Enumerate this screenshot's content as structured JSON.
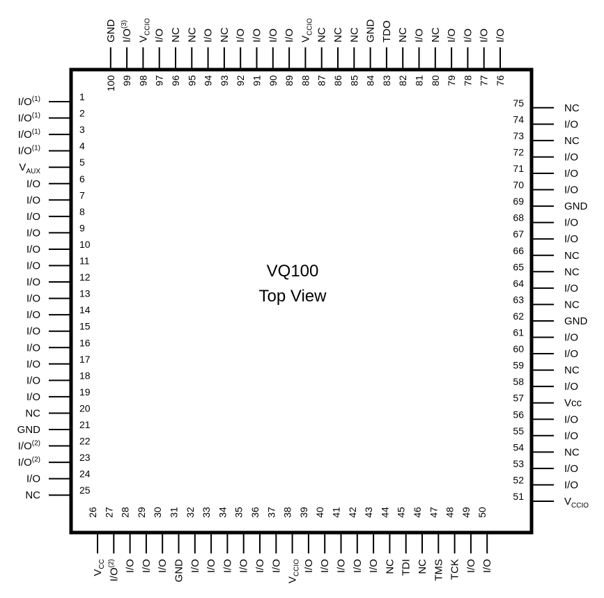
{
  "package": {
    "title_line1": "VQ100",
    "title_line2": "Top View"
  },
  "pins": {
    "left": [
      {
        "num": "1",
        "label": "I/O",
        "sup": "(1)"
      },
      {
        "num": "2",
        "label": "I/O",
        "sup": "(1)"
      },
      {
        "num": "3",
        "label": "I/O",
        "sup": "(1)"
      },
      {
        "num": "4",
        "label": "I/O",
        "sup": "(1)"
      },
      {
        "num": "5",
        "label": "V",
        "sub": "AUX"
      },
      {
        "num": "6",
        "label": "I/O"
      },
      {
        "num": "7",
        "label": "I/O"
      },
      {
        "num": "8",
        "label": "I/O"
      },
      {
        "num": "9",
        "label": "I/O"
      },
      {
        "num": "10",
        "label": "I/O"
      },
      {
        "num": "11",
        "label": "I/O"
      },
      {
        "num": "12",
        "label": "I/O"
      },
      {
        "num": "13",
        "label": "I/O"
      },
      {
        "num": "14",
        "label": "I/O"
      },
      {
        "num": "15",
        "label": "I/O"
      },
      {
        "num": "16",
        "label": "I/O"
      },
      {
        "num": "17",
        "label": "I/O"
      },
      {
        "num": "18",
        "label": "I/O"
      },
      {
        "num": "19",
        "label": "I/O"
      },
      {
        "num": "20",
        "label": "NC"
      },
      {
        "num": "21",
        "label": "GND"
      },
      {
        "num": "22",
        "label": "I/O",
        "sup": "(2)"
      },
      {
        "num": "23",
        "label": "I/O",
        "sup": "(2)"
      },
      {
        "num": "24",
        "label": "I/O"
      },
      {
        "num": "25",
        "label": "NC"
      }
    ],
    "bottom": [
      {
        "num": "26",
        "label": "V",
        "sub": "CC"
      },
      {
        "num": "27",
        "label": "I/O",
        "sup": "(2)"
      },
      {
        "num": "28",
        "label": "I/O"
      },
      {
        "num": "29",
        "label": "I/O"
      },
      {
        "num": "30",
        "label": "I/O"
      },
      {
        "num": "31",
        "label": "GND"
      },
      {
        "num": "32",
        "label": "I/O"
      },
      {
        "num": "33",
        "label": "I/O"
      },
      {
        "num": "34",
        "label": "I/O"
      },
      {
        "num": "35",
        "label": "I/O"
      },
      {
        "num": "36",
        "label": "I/O"
      },
      {
        "num": "37",
        "label": "I/O"
      },
      {
        "num": "38",
        "label": "V",
        "sub": "CCIO"
      },
      {
        "num": "39",
        "label": "I/O"
      },
      {
        "num": "40",
        "label": "I/O"
      },
      {
        "num": "41",
        "label": "I/O"
      },
      {
        "num": "42",
        "label": "I/O"
      },
      {
        "num": "43",
        "label": "I/O"
      },
      {
        "num": "44",
        "label": "NC"
      },
      {
        "num": "45",
        "label": "TDI"
      },
      {
        "num": "46",
        "label": "NC"
      },
      {
        "num": "47",
        "label": "TMS"
      },
      {
        "num": "48",
        "label": "TCK"
      },
      {
        "num": "49",
        "label": "I/O"
      },
      {
        "num": "50",
        "label": "I/O"
      }
    ],
    "right": [
      {
        "num": "51",
        "label": "V",
        "sub": "CCIO"
      },
      {
        "num": "52",
        "label": "I/O"
      },
      {
        "num": "53",
        "label": "I/O"
      },
      {
        "num": "54",
        "label": "NC"
      },
      {
        "num": "55",
        "label": "I/O"
      },
      {
        "num": "56",
        "label": "I/O"
      },
      {
        "num": "57",
        "label": "Vcc"
      },
      {
        "num": "58",
        "label": "I/O"
      },
      {
        "num": "59",
        "label": "NC"
      },
      {
        "num": "60",
        "label": "I/O"
      },
      {
        "num": "61",
        "label": "I/O"
      },
      {
        "num": "62",
        "label": "GND"
      },
      {
        "num": "63",
        "label": "NC"
      },
      {
        "num": "64",
        "label": "I/O"
      },
      {
        "num": "65",
        "label": "NC"
      },
      {
        "num": "66",
        "label": "NC"
      },
      {
        "num": "67",
        "label": "I/O"
      },
      {
        "num": "68",
        "label": "I/O"
      },
      {
        "num": "69",
        "label": "GND"
      },
      {
        "num": "70",
        "label": "I/O"
      },
      {
        "num": "71",
        "label": "I/O"
      },
      {
        "num": "72",
        "label": "I/O"
      },
      {
        "num": "73",
        "label": "NC"
      },
      {
        "num": "74",
        "label": "I/O"
      },
      {
        "num": "75",
        "label": "NC"
      }
    ],
    "top": [
      {
        "num": "76",
        "label": "I/O"
      },
      {
        "num": "77",
        "label": "I/O"
      },
      {
        "num": "78",
        "label": "I/O"
      },
      {
        "num": "79",
        "label": "I/O"
      },
      {
        "num": "80",
        "label": "NC"
      },
      {
        "num": "81",
        "label": "I/O"
      },
      {
        "num": "82",
        "label": "NC"
      },
      {
        "num": "83",
        "label": "TDO"
      },
      {
        "num": "84",
        "label": "GND"
      },
      {
        "num": "85",
        "label": "NC"
      },
      {
        "num": "86",
        "label": "NC"
      },
      {
        "num": "87",
        "label": "NC"
      },
      {
        "num": "88",
        "label": "V",
        "sub": "CCIO"
      },
      {
        "num": "89",
        "label": "I/O"
      },
      {
        "num": "90",
        "label": "I/O"
      },
      {
        "num": "91",
        "label": "I/O"
      },
      {
        "num": "92",
        "label": "I/O"
      },
      {
        "num": "93",
        "label": "NC"
      },
      {
        "num": "94",
        "label": "I/O"
      },
      {
        "num": "95",
        "label": "NC"
      },
      {
        "num": "96",
        "label": "NC"
      },
      {
        "num": "97",
        "label": "I/O"
      },
      {
        "num": "98",
        "label": "V",
        "sub": "CCIO"
      },
      {
        "num": "99",
        "label": "I/O",
        "sup": "(3)"
      },
      {
        "num": "100",
        "label": "GND"
      }
    ]
  }
}
